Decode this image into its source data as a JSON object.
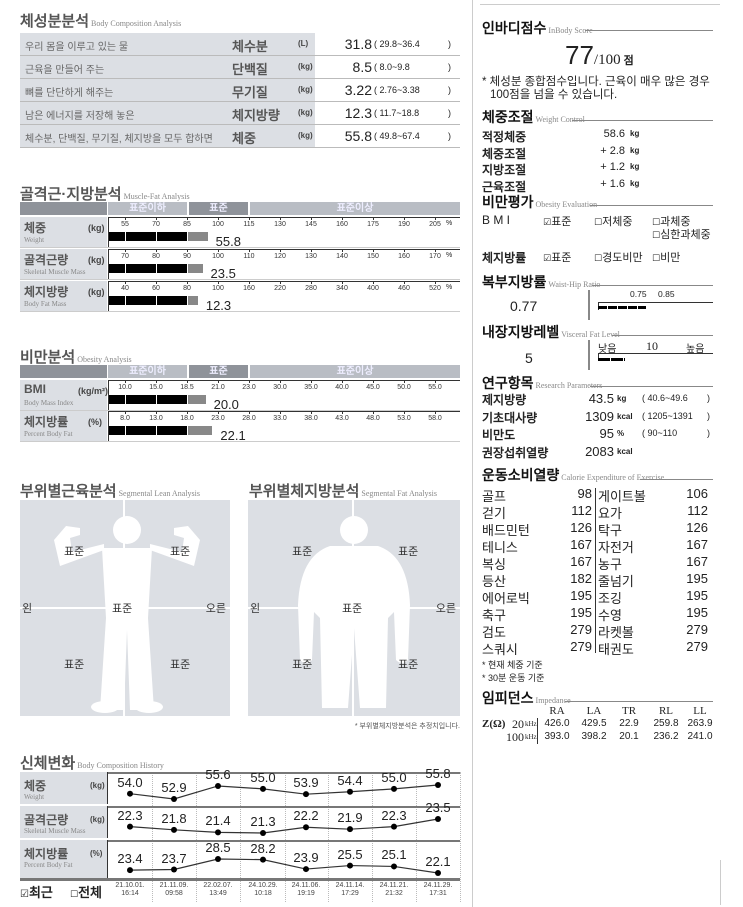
{
  "body_composition": {
    "title": "체성분분석",
    "subtitle": "Body Composition Analysis",
    "rows": [
      {
        "desc": "우리 몸을 이루고 있는 물",
        "name": "체수분",
        "unit": "(L)",
        "value": "31.8",
        "range": "29.8~36.4"
      },
      {
        "desc": "근육을 만들어 주는",
        "name": "단백질",
        "unit": "(kg)",
        "value": "8.5",
        "range": "8.0~9.8"
      },
      {
        "desc": "뼈를 단단하게 해주는",
        "name": "무기질",
        "unit": "(kg)",
        "value": "3.22",
        "range": "2.76~3.38"
      },
      {
        "desc": "남은 에너지를 저장해 놓은",
        "name": "체지방량",
        "unit": "(kg)",
        "value": "12.3",
        "range": "11.7~18.8"
      },
      {
        "desc": "체수분, 단백질, 무기질, 체지방을 모두 합하면",
        "name": "체중",
        "unit": "(kg)",
        "value": "55.8",
        "range": "49.8~67.4"
      }
    ]
  },
  "muscle_fat": {
    "title": "골격근·지방분석",
    "subtitle": "Muscle-Fat Analysis",
    "bands": [
      "표준이하",
      "표준",
      "표준이상"
    ],
    "rows": [
      {
        "name": "체중",
        "name_en": "Weight",
        "unit": "(kg)",
        "ticks": [
          55,
          70,
          85,
          100,
          115,
          130,
          145,
          160,
          175,
          190,
          205
        ],
        "tick_labels": [
          "55",
          "70",
          "85",
          "100",
          "115",
          "130",
          "145",
          "160",
          "175",
          "190",
          "205"
        ],
        "tick_unit": "%",
        "value": "55.8",
        "level": 95
      },
      {
        "name": "골격근량",
        "name_en": "Skeletal Muscle Mass",
        "unit": "(kg)",
        "ticks": [
          70,
          80,
          90,
          100,
          110,
          120,
          130,
          140,
          150,
          160,
          170
        ],
        "tick_labels": [
          "70",
          "80",
          "90",
          "100",
          "110",
          "120",
          "130",
          "140",
          "150",
          "160",
          "170"
        ],
        "tick_unit": "%",
        "value": "23.5",
        "level": 95
      },
      {
        "name": "체지방량",
        "name_en": "Body Fat Mass",
        "unit": "(kg)",
        "ticks": [
          40,
          60,
          80,
          100,
          160,
          220,
          280,
          340,
          400,
          460,
          520
        ],
        "tick_labels": [
          "40",
          "60",
          "80",
          "100",
          "160",
          "220",
          "280",
          "340",
          "400",
          "460",
          "520"
        ],
        "tick_unit": "%",
        "value": "12.3",
        "level": 87
      }
    ]
  },
  "obesity": {
    "title": "비만분석",
    "subtitle": "Obesity Analysis",
    "bands": [
      "표준이하",
      "표준",
      "표준이상"
    ],
    "rows": [
      {
        "name": "BMI",
        "name_en": "Body Mass Index",
        "unit": "(kg/m²)",
        "ticks": [
          10,
          15,
          18.5,
          21,
          23,
          30,
          35,
          40,
          45,
          50,
          55
        ],
        "tick_labels": [
          "10.0",
          "15.0",
          "18.5",
          "21.0",
          "23.0",
          "30.0",
          "35.0",
          "40.0",
          "45.0",
          "50.0",
          "55.0"
        ],
        "tick_unit": "",
        "value": "20.0",
        "level": 20.0
      },
      {
        "name": "체지방률",
        "name_en": "Percent Body Fat",
        "unit": "(%)",
        "ticks": [
          8,
          13,
          18,
          23,
          28,
          33,
          38,
          43,
          48,
          53,
          58
        ],
        "tick_labels": [
          "8.0",
          "13.0",
          "18.0",
          "23.0",
          "28.0",
          "33.0",
          "38.0",
          "43.0",
          "48.0",
          "53.0",
          "58.0"
        ],
        "tick_unit": "",
        "value": "22.1",
        "level": 22.1
      }
    ]
  },
  "segmental_lean": {
    "title": "부위별근육분석",
    "subtitle": "Segmental Lean Analysis",
    "left_arm": "표준",
    "right_arm": "표준",
    "trunk": "표준",
    "left_leg": "표준",
    "right_leg": "표준",
    "left": "왼",
    "right": "오른"
  },
  "segmental_fat": {
    "title": "부위별체지방분석",
    "subtitle": "Segmental Fat Analysis",
    "left_arm": "표준",
    "right_arm": "표준",
    "trunk": "표준",
    "left_leg": "표준",
    "right_leg": "표준",
    "left": "왼",
    "right": "오른",
    "note": "* 부위별체지방분석은 추정치입니다."
  },
  "history": {
    "title": "신체변화",
    "subtitle": "Body Composition History",
    "rows": [
      {
        "name": "체중",
        "name_en": "Weight",
        "unit": "(kg)",
        "values": [
          54.0,
          52.9,
          55.6,
          55.0,
          53.9,
          54.4,
          55.0,
          55.8
        ]
      },
      {
        "name": "골격근량",
        "name_en": "Skeletal Muscle Mass",
        "unit": "(kg)",
        "values": [
          22.3,
          21.8,
          21.4,
          21.3,
          22.2,
          21.9,
          22.3,
          23.5
        ]
      },
      {
        "name": "체지방률",
        "name_en": "Percent Body Fat",
        "unit": "(%)",
        "values": [
          23.4,
          23.7,
          28.5,
          28.2,
          23.9,
          25.5,
          25.1,
          22.1
        ]
      }
    ],
    "dates": [
      [
        "21.10.01.",
        "16:14"
      ],
      [
        "21.11.09.",
        "09:58"
      ],
      [
        "22.02.07.",
        "13:49"
      ],
      [
        "24.10.29.",
        "10:18"
      ],
      [
        "24.11.06.",
        "19:19"
      ],
      [
        "24.11.14.",
        "17:29"
      ],
      [
        "24.11.21.",
        "21:32"
      ],
      [
        "24.11.29.",
        "17:31"
      ]
    ],
    "filter_recent": "최근",
    "filter_all": "전체",
    "filter_recent_checked": true
  },
  "score": {
    "title": "인바디점수",
    "subtitle": "InBody Score",
    "value": "77",
    "max": "/100",
    "unit": "점",
    "note1": "* 체성분 종합점수입니다. 근육이 매우 많은 경우",
    "note2": "100점을 넘을 수 있습니다."
  },
  "weight_control": {
    "title": "체중조절",
    "subtitle": "Weight Control",
    "rows": [
      {
        "label": "적정체중",
        "value": "58.6",
        "unit": "kg"
      },
      {
        "label": "체중조절",
        "value": "+ 2.8",
        "unit": "kg"
      },
      {
        "label": "지방조절",
        "value": "+ 1.2",
        "unit": "kg"
      },
      {
        "label": "근육조절",
        "value": "+ 1.6",
        "unit": "kg"
      }
    ]
  },
  "obesity_eval": {
    "title": "비만평가",
    "subtitle": "Obesity Evaluation",
    "bmi": {
      "label": "B M I",
      "options": [
        "표준",
        "저체중",
        "과체중",
        "심한과체중"
      ],
      "checked": "표준"
    },
    "pbf": {
      "label": "체지방률",
      "options": [
        "표준",
        "경도비만",
        "비만"
      ],
      "checked": "표준"
    }
  },
  "whr": {
    "title": "복부지방률",
    "subtitle": "Waist-Hip Ratio",
    "value": "0.77",
    "ticks": [
      "0.75",
      "0.85"
    ]
  },
  "visceral": {
    "title": "내장지방레벨",
    "subtitle": "Visceral Fat Level",
    "value": "5",
    "low": "낮음",
    "mid": "10",
    "high": "높음"
  },
  "research": {
    "title": "연구항목",
    "subtitle": "Research Parameters",
    "rows": [
      {
        "label": "제지방량",
        "value": "43.5",
        "unit": "kg",
        "range": "40.6~49.6"
      },
      {
        "label": "기초대사량",
        "value": "1309",
        "unit": "kcal",
        "range": "1205~1391"
      },
      {
        "label": "비만도",
        "value": "95",
        "unit": "%",
        "range": "90~110"
      },
      {
        "label": "권장섭취열량",
        "value": "2083",
        "unit": "kcal",
        "range": ""
      }
    ]
  },
  "exercise": {
    "title": "운동소비열량",
    "subtitle": "Calorie Expenditure of Exercise",
    "left": [
      {
        "label": "골프",
        "value": "98"
      },
      {
        "label": "걷기",
        "value": "112"
      },
      {
        "label": "배드민턴",
        "value": "126"
      },
      {
        "label": "테니스",
        "value": "167"
      },
      {
        "label": "복싱",
        "value": "167"
      },
      {
        "label": "등산",
        "value": "182"
      },
      {
        "label": "에어로빅",
        "value": "195"
      },
      {
        "label": "축구",
        "value": "195"
      },
      {
        "label": "검도",
        "value": "279"
      },
      {
        "label": "스쿼시",
        "value": "279"
      }
    ],
    "right": [
      {
        "label": "게이트볼",
        "value": "106"
      },
      {
        "label": "요가",
        "value": "112"
      },
      {
        "label": "탁구",
        "value": "126"
      },
      {
        "label": "자전거",
        "value": "167"
      },
      {
        "label": "농구",
        "value": "167"
      },
      {
        "label": "줄넘기",
        "value": "195"
      },
      {
        "label": "조깅",
        "value": "195"
      },
      {
        "label": "수영",
        "value": "195"
      },
      {
        "label": "라켓볼",
        "value": "279"
      },
      {
        "label": "태권도",
        "value": "279"
      }
    ],
    "note1": "* 현재 체중 기준",
    "note2": "* 30분 운동 기준"
  },
  "impedance": {
    "title": "임피던스",
    "subtitle": "Impedance",
    "z_label": "Z(Ω)",
    "columns": [
      "RA",
      "LA",
      "TR",
      "RL",
      "LL"
    ],
    "rows": [
      {
        "freq": "20",
        "unit": "kHz",
        "values": [
          "426.0",
          "429.5",
          "22.9",
          "259.8",
          "263.9"
        ]
      },
      {
        "freq": "100",
        "unit": "kHz",
        "values": [
          "393.0",
          "398.2",
          "20.1",
          "236.2",
          "241.0"
        ]
      }
    ]
  },
  "colors": {
    "label_bg": "#dcdfe4",
    "band_light": "#b9bdc4",
    "band_dark": "#8f939a",
    "bar": "#000000",
    "bar_gray": "#888888"
  }
}
